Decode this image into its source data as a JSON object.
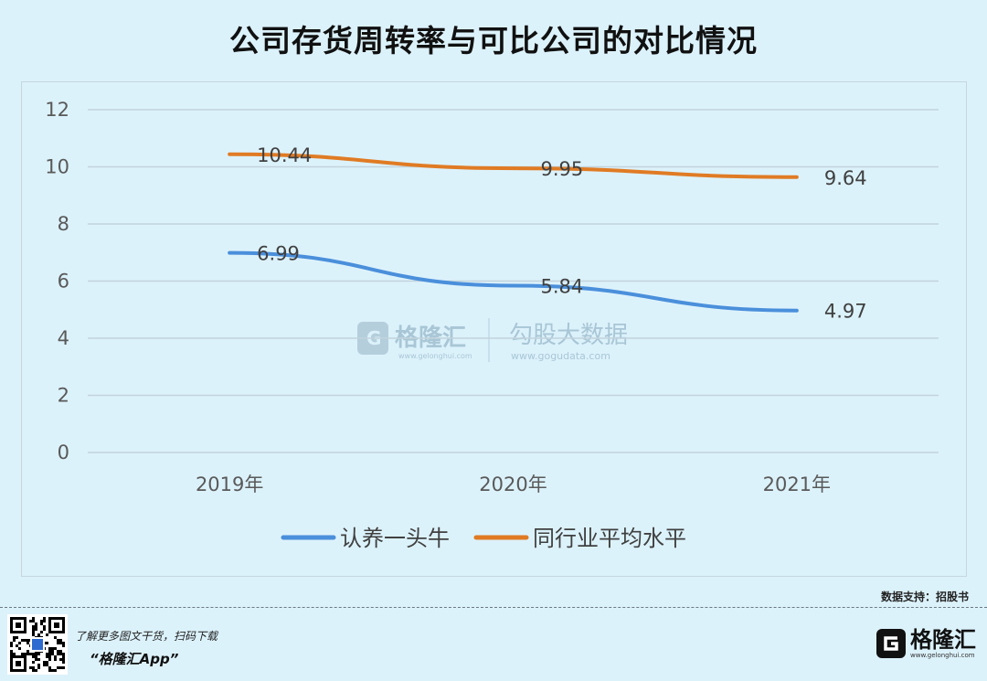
{
  "title": "公司存货周转率与可比公司的对比情况",
  "source_text": "数据支持：招股书",
  "footer": {
    "line1": "了解更多图文干货，扫码下载",
    "line2": "“格隆汇App”",
    "brand_name": "格隆汇",
    "brand_url": "www.gelonghui.com"
  },
  "watermark": {
    "brand_name": "格隆汇",
    "brand_url": "www.gelonghui.com",
    "partner_name": "勾股大数据",
    "partner_url": "www.gogudata.com"
  },
  "chart_data": {
    "type": "line",
    "title": "公司存货周转率与可比公司的对比情况",
    "categories": [
      "2019年",
      "2020年",
      "2021年"
    ],
    "series": [
      {
        "name": "认养一头牛",
        "values": [
          6.99,
          5.84,
          4.97
        ],
        "labels": [
          "6.99",
          "5.84",
          "4.97"
        ],
        "color": "#4a8fdb"
      },
      {
        "name": "同行业平均水平",
        "values": [
          10.44,
          9.95,
          9.64
        ],
        "labels": [
          "10.44",
          "9.95",
          "9.64"
        ],
        "color": "#e07b24"
      }
    ],
    "y_ticks": [
      "0",
      "2",
      "4",
      "6",
      "8",
      "10",
      "12"
    ],
    "ylim": [
      0,
      12
    ],
    "grid": true,
    "legend_position": "bottom",
    "gridline_color": "#c2d3dc"
  }
}
